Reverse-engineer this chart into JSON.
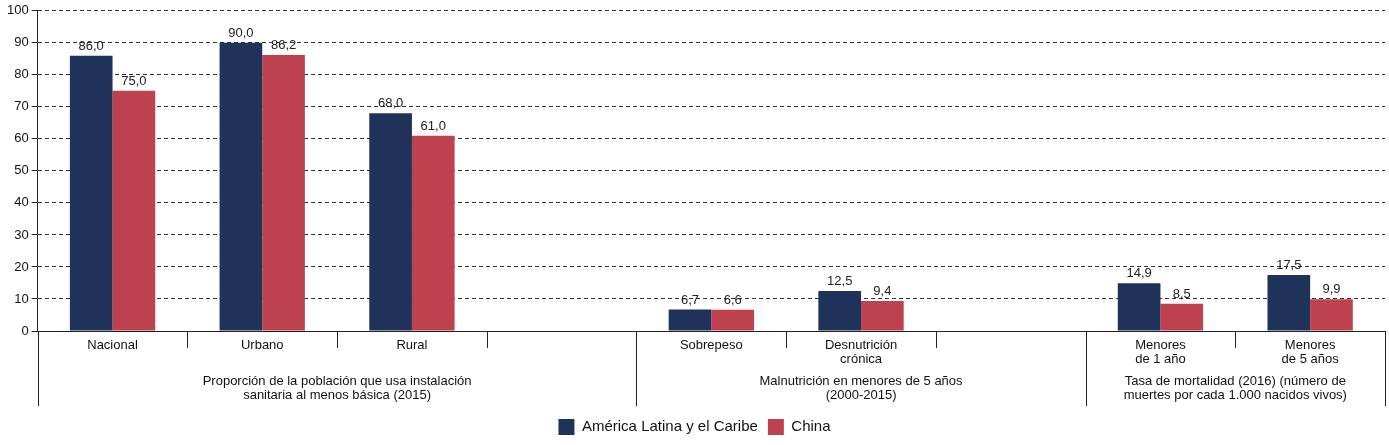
{
  "chart_data": {
    "type": "bar",
    "categories": [
      "Nacional",
      "Urbano",
      "Rural",
      null,
      "Sobrepeso",
      "Desnutrición\ncrónica",
      null,
      "Menores\nde 1 año",
      "Menores\nde 5 años"
    ],
    "series": [
      {
        "name": "América Latina y el Caribe",
        "color": "#1f3259",
        "values": [
          86.0,
          90.0,
          68.0,
          null,
          6.7,
          12.5,
          null,
          14.9,
          17.5
        ],
        "value_labels": [
          "86,0",
          "90,0",
          "68,0",
          null,
          "6,7",
          "12,5",
          null,
          "14,9",
          "17,5"
        ]
      },
      {
        "name": "China",
        "color": "#be4150",
        "values": [
          75.0,
          86.2,
          61.0,
          null,
          6.6,
          9.4,
          null,
          8.5,
          9.9
        ],
        "value_labels": [
          "75,0",
          "86,2",
          "61,0",
          null,
          "6,6",
          "9,4",
          null,
          "8,5",
          "9,9"
        ]
      }
    ],
    "annotations": [
      "Proporción de la población que usa instalación\nsanitaria al menos básica (2015)",
      "Malnutrición en menores de 5 años\n(2000-2015)",
      "Tasa de mortalidad (2016) (número de\nmuertes por cada 1.000 nacidos vivos)"
    ],
    "ylim": [
      0,
      100
    ],
    "yticks": [
      0,
      10,
      20,
      30,
      40,
      50,
      60,
      70,
      80,
      90,
      100
    ],
    "grid": "y",
    "line_style": "dashed",
    "legend": "bottom"
  }
}
